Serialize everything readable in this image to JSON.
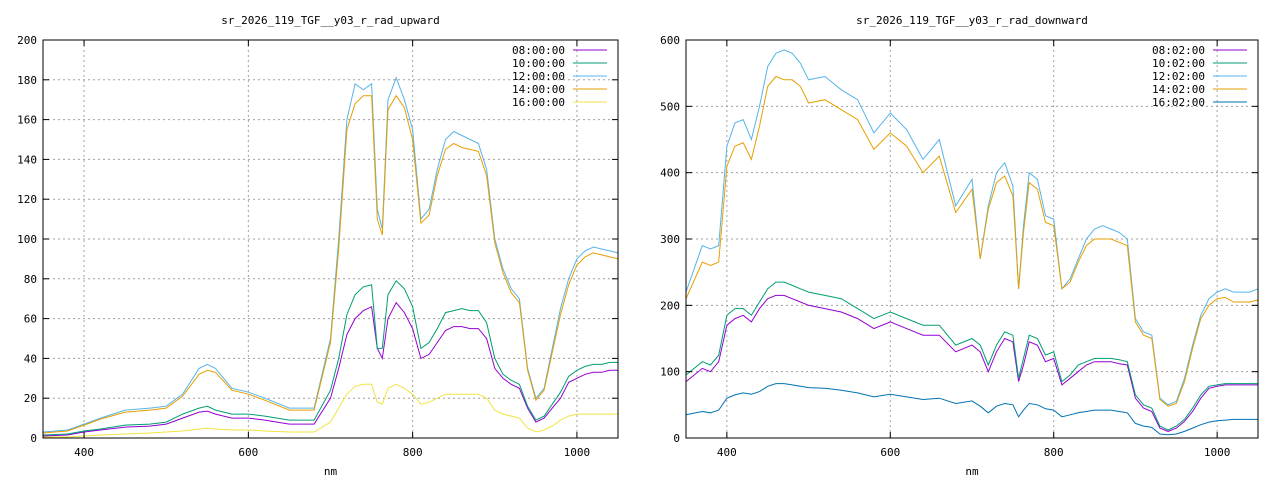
{
  "chart_data": [
    {
      "type": "line",
      "title": "sr_2026_119_TGF__y03_r_rad_upward",
      "xlabel": "nm",
      "ylabel": "",
      "xlim": [
        350,
        1050
      ],
      "ylim": [
        0,
        200
      ],
      "xticks": [
        400,
        600,
        800,
        1000
      ],
      "yticks": [
        0,
        20,
        40,
        60,
        80,
        100,
        120,
        140,
        160,
        180,
        200
      ],
      "grid": true,
      "legend_position": "top-right",
      "x": [
        350,
        380,
        400,
        420,
        450,
        480,
        500,
        520,
        540,
        550,
        560,
        580,
        600,
        620,
        650,
        680,
        700,
        710,
        720,
        730,
        740,
        750,
        757,
        763,
        770,
        780,
        790,
        800,
        810,
        820,
        830,
        840,
        850,
        860,
        870,
        880,
        890,
        900,
        910,
        920,
        930,
        940,
        950,
        960,
        970,
        980,
        990,
        1000,
        1010,
        1020,
        1030,
        1040,
        1050
      ],
      "series": [
        {
          "name": "08:00:00",
          "color": "#9400d3",
          "values": [
            1,
            1.5,
            3,
            4,
            5.5,
            6,
            7,
            10,
            13,
            13.5,
            12,
            10,
            10,
            9,
            7,
            7,
            20,
            35,
            52,
            60,
            64,
            66,
            45,
            40,
            60,
            68,
            63,
            55,
            40,
            42,
            48,
            54,
            56,
            56,
            55,
            55,
            50,
            35,
            30,
            27,
            25,
            15,
            8,
            10,
            15,
            20,
            28,
            30,
            32,
            33,
            33,
            34,
            34
          ]
        },
        {
          "name": "10:00:00",
          "color": "#009e73",
          "values": [
            1.5,
            2,
            3.5,
            4.5,
            6.5,
            7,
            8,
            12,
            15,
            16,
            14,
            12,
            12,
            11,
            9,
            9,
            24,
            40,
            62,
            72,
            76,
            77,
            45,
            45,
            72,
            79,
            75,
            66,
            45,
            48,
            55,
            63,
            64,
            65,
            64,
            64,
            58,
            40,
            32,
            29,
            27,
            16,
            9,
            11,
            17,
            23,
            31,
            34,
            36,
            37,
            37,
            38,
            38
          ]
        },
        {
          "name": "12:00:00",
          "color": "#56b4e9",
          "values": [
            3,
            4,
            7,
            10,
            14,
            15,
            16,
            22,
            35,
            37,
            35,
            25,
            23,
            20,
            15,
            15,
            50,
            100,
            160,
            178,
            175,
            178,
            115,
            105,
            170,
            181,
            170,
            155,
            110,
            115,
            135,
            150,
            154,
            152,
            150,
            148,
            135,
            100,
            85,
            75,
            70,
            35,
            20,
            25,
            45,
            65,
            80,
            90,
            94,
            96,
            95,
            94,
            93
          ]
        },
        {
          "name": "14:00:00",
          "color": "#e69f00",
          "values": [
            2.5,
            3.5,
            6.5,
            9.5,
            13,
            14,
            15,
            21,
            32,
            34,
            33,
            24,
            22,
            19,
            14,
            14,
            48,
            95,
            155,
            168,
            172,
            172,
            110,
            102,
            165,
            172,
            166,
            150,
            108,
            112,
            132,
            145,
            148,
            146,
            145,
            144,
            132,
            98,
            83,
            73,
            68,
            34,
            19,
            24,
            43,
            62,
            77,
            87,
            91,
            93,
            92,
            91,
            90
          ]
        },
        {
          "name": "16:00:00",
          "color": "#f0e442",
          "values": [
            0.5,
            0.5,
            1,
            1.5,
            2,
            2.5,
            3,
            3.5,
            4.5,
            5,
            4.5,
            4,
            4,
            3.5,
            3,
            3,
            8,
            15,
            22,
            26,
            27,
            27,
            18,
            17,
            25,
            27,
            25,
            22,
            17,
            18,
            20,
            22,
            22,
            22,
            22,
            22,
            20,
            14,
            12,
            11,
            10,
            5,
            3,
            4,
            6,
            9,
            11,
            12,
            12,
            12,
            12,
            12,
            12
          ]
        }
      ]
    },
    {
      "type": "line",
      "title": "sr_2026_119_TGF__y03_r_rad_downward",
      "xlabel": "nm",
      "ylabel": "",
      "xlim": [
        350,
        1050
      ],
      "ylim": [
        0,
        600
      ],
      "xticks": [
        400,
        600,
        800,
        1000
      ],
      "yticks": [
        0,
        100,
        200,
        300,
        400,
        500,
        600
      ],
      "grid": true,
      "legend_position": "top-right",
      "x": [
        350,
        370,
        380,
        390,
        400,
        410,
        420,
        430,
        440,
        450,
        460,
        470,
        480,
        490,
        500,
        520,
        540,
        560,
        580,
        600,
        620,
        640,
        660,
        680,
        700,
        710,
        720,
        730,
        740,
        750,
        757,
        763,
        770,
        780,
        790,
        800,
        810,
        820,
        830,
        840,
        850,
        860,
        870,
        880,
        890,
        900,
        910,
        920,
        930,
        940,
        950,
        960,
        970,
        980,
        990,
        1000,
        1010,
        1020,
        1030,
        1040,
        1050
      ],
      "series": [
        {
          "name": "08:02:00",
          "color": "#9400d3",
          "values": [
            85,
            105,
            100,
            115,
            170,
            180,
            185,
            175,
            195,
            210,
            215,
            215,
            210,
            205,
            200,
            195,
            190,
            180,
            165,
            175,
            165,
            155,
            155,
            130,
            140,
            130,
            100,
            130,
            150,
            145,
            85,
            110,
            145,
            140,
            115,
            120,
            80,
            90,
            100,
            110,
            115,
            115,
            115,
            112,
            110,
            60,
            45,
            40,
            15,
            10,
            15,
            25,
            40,
            60,
            75,
            78,
            80,
            80,
            80,
            80,
            80
          ]
        },
        {
          "name": "10:02:00",
          "color": "#009e73",
          "values": [
            95,
            115,
            110,
            125,
            185,
            195,
            195,
            185,
            205,
            225,
            235,
            235,
            230,
            225,
            220,
            215,
            210,
            195,
            180,
            190,
            180,
            170,
            170,
            140,
            150,
            140,
            110,
            140,
            160,
            155,
            90,
            120,
            155,
            150,
            125,
            130,
            85,
            95,
            110,
            115,
            120,
            120,
            120,
            118,
            115,
            65,
            50,
            45,
            18,
            12,
            18,
            28,
            45,
            65,
            78,
            80,
            82,
            82,
            82,
            82,
            82
          ]
        },
        {
          "name": "12:02:00",
          "color": "#56b4e9",
          "values": [
            220,
            290,
            285,
            290,
            440,
            475,
            480,
            450,
            500,
            560,
            580,
            585,
            580,
            565,
            540,
            545,
            525,
            510,
            460,
            490,
            465,
            420,
            450,
            350,
            390,
            270,
            350,
            400,
            415,
            380,
            225,
            320,
            400,
            390,
            335,
            330,
            225,
            240,
            270,
            300,
            315,
            320,
            315,
            310,
            300,
            180,
            160,
            155,
            60,
            50,
            55,
            90,
            140,
            185,
            210,
            220,
            225,
            220,
            220,
            220,
            225
          ]
        },
        {
          "name": "14:02:00",
          "color": "#e69f00",
          "values": [
            210,
            265,
            260,
            265,
            410,
            440,
            445,
            420,
            470,
            530,
            545,
            540,
            540,
            530,
            505,
            510,
            495,
            480,
            435,
            460,
            440,
            400,
            425,
            340,
            375,
            270,
            345,
            385,
            395,
            365,
            225,
            310,
            385,
            375,
            325,
            320,
            225,
            235,
            265,
            290,
            300,
            300,
            300,
            295,
            290,
            175,
            155,
            150,
            58,
            48,
            52,
            85,
            135,
            180,
            200,
            210,
            212,
            205,
            205,
            205,
            208
          ]
        },
        {
          "name": "16:02:00",
          "color": "#0072b2",
          "values": [
            35,
            40,
            38,
            42,
            60,
            65,
            68,
            66,
            70,
            78,
            82,
            82,
            80,
            78,
            76,
            75,
            72,
            68,
            62,
            66,
            62,
            58,
            60,
            52,
            56,
            48,
            38,
            48,
            52,
            50,
            32,
            42,
            52,
            50,
            44,
            42,
            32,
            35,
            38,
            40,
            42,
            42,
            42,
            40,
            38,
            22,
            18,
            16,
            6,
            5,
            6,
            10,
            15,
            20,
            24,
            26,
            27,
            28,
            28,
            28,
            28
          ]
        }
      ]
    }
  ]
}
